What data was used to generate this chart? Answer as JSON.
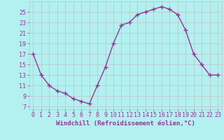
{
  "x": [
    0,
    1,
    2,
    3,
    4,
    5,
    6,
    7,
    8,
    9,
    10,
    11,
    12,
    13,
    14,
    15,
    16,
    17,
    18,
    19,
    20,
    21,
    22,
    23
  ],
  "y": [
    17,
    13,
    11,
    10,
    9.5,
    8.5,
    8,
    7.5,
    11,
    14.5,
    19,
    22.5,
    23,
    24.5,
    25,
    25.5,
    26,
    25.5,
    24.5,
    21.5,
    17,
    15,
    13,
    13
  ],
  "xlabel": "Windchill (Refroidissement éolien,°C)",
  "xticks": [
    0,
    1,
    2,
    3,
    4,
    5,
    6,
    7,
    8,
    9,
    10,
    11,
    12,
    13,
    14,
    15,
    16,
    17,
    18,
    19,
    20,
    21,
    22,
    23
  ],
  "yticks": [
    7,
    9,
    11,
    13,
    15,
    17,
    19,
    21,
    23,
    25
  ],
  "ylim": [
    6.5,
    27
  ],
  "xlim": [
    -0.5,
    23.5
  ],
  "line_color": "#993399",
  "marker": "+",
  "bg_color": "#b3f0f0",
  "grid_color": "#c0c0c0",
  "tick_label_color": "#993399",
  "xlabel_color": "#993399",
  "xlabel_fontsize": 6.5,
  "tick_fontsize": 6,
  "marker_size": 4,
  "line_width": 1.0
}
